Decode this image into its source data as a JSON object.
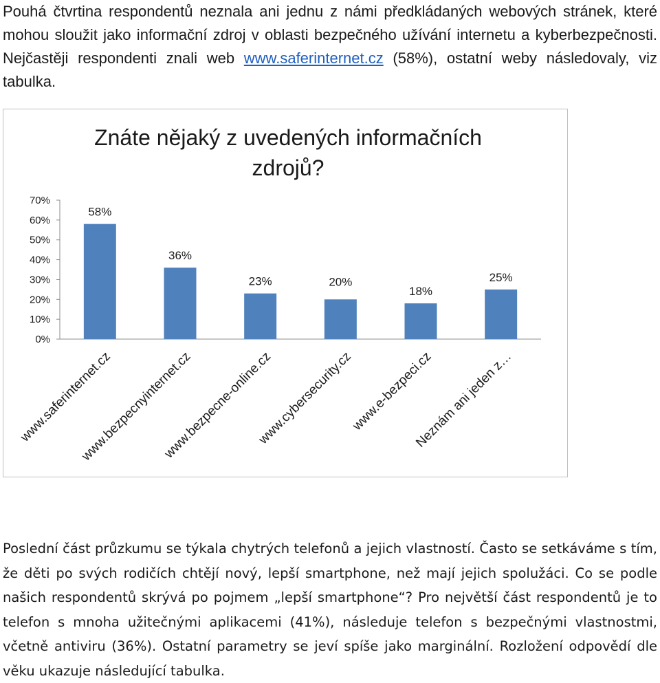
{
  "intro": {
    "text_before_link": "Pouhá čtvrtina respondentů neznala ani jednu z námi předkládaných webových stránek, které mohou sloužit jako informační zdroj v oblasti bezpečného užívání internetu a kyberbezpečnosti. Nejčastěji respondenti znali web ",
    "link_text": "www.saferinternet.cz",
    "text_after_link": " (58%), ostatní weby následovaly, viz tabulka."
  },
  "chart_data": {
    "type": "bar",
    "title": "Znáte nějaký z uvedených informačních zdrojů?",
    "title_lines": [
      "Znáte nějaký z uvedených informačních",
      "zdrojů?"
    ],
    "categories": [
      "www.saferinternet.cz",
      "www.bezpecnyinternet.cz",
      "www.bezpecne-online.cz",
      "www.cybersecurity.cz",
      "www.e-bezpeci.cz",
      "Neznám ani jeden z…"
    ],
    "values": [
      58,
      36,
      23,
      20,
      18,
      25
    ],
    "data_labels": [
      "58%",
      "36%",
      "23%",
      "20%",
      "18%",
      "25%"
    ],
    "y_ticks": [
      "0%",
      "10%",
      "20%",
      "30%",
      "40%",
      "50%",
      "60%",
      "70%"
    ],
    "ylim": [
      0,
      70
    ],
    "bar_color": "#4f81bd",
    "grid": false,
    "legend": "none"
  },
  "outro": {
    "text": "Poslední část průzkumu se týkala chytrých telefonů a jejich vlastností. Často se setkáváme s tím, že děti po svých rodičích chtějí nový, lepší smartphone, než mají jejich spolužáci. Co se podle našich respondentů skrývá po pojmem „lepší smartphone“? Pro největší část respondentů je to telefon s mnoha užitečnými aplikacemi (41%), následuje telefon s bezpečnými vlastnostmi, včetně antiviru (36%). Ostatní parametry se jeví spíše jako marginální. Rozložení odpovědí dle věku ukazuje následující tabulka."
  }
}
